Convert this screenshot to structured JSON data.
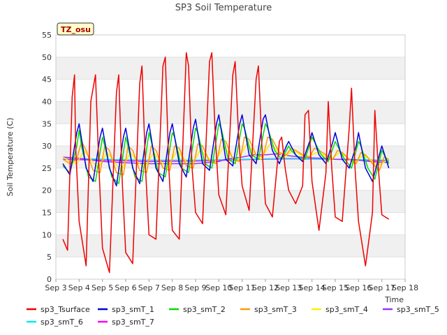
{
  "chart_data": {
    "type": "line",
    "title": "SP3 Soil Temperature",
    "ylabel": "Soil Temperature (C)",
    "xlabel": "Time",
    "badge": "TZ_osu",
    "ylim": [
      0,
      55
    ],
    "xlim": [
      3,
      18
    ],
    "yticks": [
      0,
      5,
      10,
      15,
      20,
      25,
      30,
      35,
      40,
      45,
      50,
      55
    ],
    "xticks": [
      {
        "value": 3,
        "label": "Sep 3"
      },
      {
        "value": 4,
        "label": "Sep 4"
      },
      {
        "value": 5,
        "label": "Sep 5"
      },
      {
        "value": 6,
        "label": "Sep 6"
      },
      {
        "value": 7,
        "label": "Sep 7"
      },
      {
        "value": 8,
        "label": "Sep 8"
      },
      {
        "value": 9,
        "label": "Sep 9"
      },
      {
        "value": 10,
        "label": "Sep 10"
      },
      {
        "value": 11,
        "label": "Sep 11"
      },
      {
        "value": 12,
        "label": "Sep 12"
      },
      {
        "value": 13,
        "label": "Sep 13"
      },
      {
        "value": 14,
        "label": "Sep 14"
      },
      {
        "value": 15,
        "label": "Sep 15"
      },
      {
        "value": 16,
        "label": "Sep 16"
      },
      {
        "value": 17,
        "label": "Sep 17"
      },
      {
        "value": 18,
        "label": "Sep 18"
      }
    ],
    "grid": "horizontal bands",
    "legend": "bottom",
    "series": [
      {
        "name": "sp3_Tsurface",
        "color": "#ee0000",
        "x": [
          3.3,
          3.5,
          3.7,
          3.8,
          3.85,
          4.0,
          4.3,
          4.5,
          4.7,
          4.85,
          5.0,
          5.3,
          5.6,
          5.7,
          5.85,
          6.0,
          6.3,
          6.6,
          6.7,
          6.85,
          7.0,
          7.3,
          7.6,
          7.7,
          7.85,
          8.0,
          8.3,
          8.6,
          8.7,
          8.85,
          9.0,
          9.3,
          9.6,
          9.7,
          9.85,
          10.0,
          10.3,
          10.6,
          10.7,
          10.85,
          11.0,
          11.3,
          11.6,
          11.7,
          11.85,
          12.0,
          12.3,
          12.6,
          12.7,
          12.85,
          13.0,
          13.3,
          13.6,
          13.7,
          13.85,
          14.0,
          14.3,
          14.6,
          14.7,
          14.85,
          15.0,
          15.3,
          15.6,
          15.7,
          15.85,
          16.0,
          16.3,
          16.6,
          16.7,
          16.85,
          17.0,
          17.3
        ],
        "y": [
          9,
          6.5,
          41,
          46,
          30,
          13,
          3,
          40,
          46,
          25,
          7,
          1.5,
          42,
          46,
          22,
          6,
          3.5,
          44,
          48,
          25,
          10,
          9,
          48,
          50,
          25,
          11,
          9,
          51,
          48,
          25,
          15,
          12.5,
          49,
          51,
          32,
          19,
          14.5,
          46,
          49,
          32,
          21,
          15.5,
          45,
          48,
          30,
          17,
          14,
          31,
          32,
          25,
          20,
          17,
          21,
          37,
          38,
          22,
          11,
          24,
          40,
          25,
          14,
          13,
          34,
          43,
          25,
          13,
          3,
          15,
          38,
          25,
          14.5,
          13.5
        ]
      },
      {
        "name": "sp3_smT_1",
        "color": "#0000dd",
        "x": [
          3.3,
          3.6,
          3.9,
          4.0,
          4.3,
          4.6,
          4.9,
          5.0,
          5.3,
          5.6,
          5.9,
          6.0,
          6.3,
          6.6,
          6.9,
          7.0,
          7.3,
          7.6,
          7.9,
          8.0,
          8.3,
          8.6,
          8.9,
          9.0,
          9.3,
          9.6,
          9.9,
          10.0,
          10.3,
          10.6,
          10.9,
          11.0,
          11.3,
          11.6,
          11.9,
          12.0,
          12.3,
          12.6,
          12.9,
          13.0,
          13.3,
          13.6,
          13.9,
          14.0,
          14.3,
          14.6,
          14.9,
          15.0,
          15.3,
          15.6,
          15.9,
          16.0,
          16.3,
          16.6,
          16.9,
          17.0,
          17.3
        ],
        "y": [
          26,
          23.5,
          33,
          35,
          25,
          22,
          32,
          34,
          25,
          21,
          32,
          34,
          25,
          21.5,
          33,
          35,
          25,
          22,
          33,
          35,
          26,
          23,
          34,
          36,
          26,
          24.5,
          35,
          37,
          27,
          25.5,
          35,
          37,
          28,
          26,
          36,
          37,
          29,
          26,
          30,
          31,
          28,
          26.5,
          31,
          33,
          28,
          26,
          31,
          33,
          27,
          25,
          30,
          33,
          25,
          22,
          28,
          30,
          25
        ]
      },
      {
        "name": "sp3_smT_2",
        "color": "#00dd00",
        "x": [
          3.3,
          3.6,
          3.9,
          4.0,
          4.1,
          4.4,
          4.7,
          5.0,
          5.1,
          5.4,
          5.7,
          6.0,
          6.1,
          6.4,
          6.7,
          7.0,
          7.1,
          7.4,
          7.7,
          8.0,
          8.1,
          8.4,
          8.7,
          9.0,
          9.1,
          9.4,
          9.7,
          10.0,
          10.1,
          10.4,
          10.7,
          11.0,
          11.1,
          11.4,
          11.7,
          12.0,
          12.1,
          12.4,
          12.7,
          13.0,
          13.1,
          13.4,
          13.7,
          14.0,
          14.1,
          14.4,
          14.7,
          15.0,
          15.1,
          15.4,
          15.7,
          16.0,
          16.1,
          16.4,
          16.7,
          17.0,
          17.3
        ],
        "y": [
          25.5,
          24,
          30,
          33.5,
          30,
          23,
          22,
          32,
          30,
          23,
          21.5,
          32,
          30,
          23,
          22,
          33,
          31,
          24,
          23,
          33,
          32,
          25,
          24,
          34,
          33,
          26,
          25,
          35,
          34,
          27,
          26,
          35,
          34,
          28,
          27,
          35,
          34,
          29,
          27,
          30,
          29,
          27.5,
          27,
          32,
          31,
          28,
          26.5,
          31,
          30,
          27,
          25,
          31,
          30,
          25,
          22.5,
          29,
          26
        ]
      },
      {
        "name": "sp3_smT_3",
        "color": "#ff9900",
        "x": [
          3.3,
          3.6,
          3.9,
          4.1,
          4.3,
          4.6,
          4.9,
          5.1,
          5.3,
          5.6,
          5.9,
          6.1,
          6.3,
          6.6,
          6.9,
          7.1,
          7.3,
          7.6,
          7.9,
          8.1,
          8.3,
          8.6,
          8.9,
          9.1,
          9.3,
          9.6,
          9.9,
          10.1,
          10.3,
          10.6,
          10.9,
          11.1,
          11.3,
          11.6,
          11.9,
          12.1,
          12.3,
          12.6,
          12.9,
          13.1,
          13.3,
          13.6,
          13.9,
          14.1,
          14.3,
          14.6,
          14.9,
          15.1,
          15.3,
          15.6,
          15.9,
          16.1,
          16.3,
          16.6,
          16.9,
          17.1,
          17.3
        ],
        "y": [
          27,
          26,
          27,
          31,
          29,
          24.5,
          24,
          30,
          29,
          24,
          23.5,
          30,
          29,
          24.5,
          24,
          30,
          29,
          25,
          24.5,
          30,
          29.5,
          25.5,
          25,
          30.5,
          30,
          26.5,
          26,
          31.5,
          31,
          27,
          26.5,
          32,
          31.5,
          28,
          27.5,
          32,
          31.5,
          28.5,
          28,
          29.5,
          29,
          28,
          27.5,
          29.5,
          29,
          28,
          27,
          29,
          28.5,
          27,
          26,
          28.5,
          28,
          26,
          24.5,
          27.5,
          27
        ]
      },
      {
        "name": "sp3_smT_4",
        "color": "#ffee00",
        "x": [
          3.3,
          3.6,
          3.9,
          4.2,
          4.5,
          4.8,
          5.2,
          5.5,
          5.8,
          6.2,
          6.5,
          6.8,
          7.2,
          7.5,
          7.8,
          8.2,
          8.5,
          8.8,
          9.2,
          9.5,
          9.8,
          10.2,
          10.5,
          10.8,
          11.2,
          11.5,
          11.8,
          12.2,
          12.5,
          12.8,
          13.2,
          13.5,
          13.8,
          14.2,
          14.5,
          14.8,
          15.2,
          15.5,
          15.8,
          16.2,
          16.5,
          16.8,
          17.3
        ],
        "y": [
          27.5,
          26.5,
          26,
          29,
          27,
          25,
          28.5,
          26.5,
          24.5,
          28.5,
          26.5,
          25,
          28.5,
          26.5,
          25,
          29,
          27,
          25.5,
          29,
          27.5,
          26,
          30,
          28,
          26.5,
          30.5,
          28.5,
          27,
          30.5,
          29,
          27.5,
          29,
          28,
          27.5,
          28.5,
          28,
          27,
          28.5,
          27.5,
          26,
          28,
          27,
          25.5,
          27
        ]
      },
      {
        "name": "sp3_smT_5",
        "color": "#9933ff",
        "x": [
          3.3,
          4.0,
          5.0,
          6.0,
          7.0,
          8.0,
          9.0,
          10.0,
          10.3,
          11.0,
          11.5,
          12.0,
          12.5,
          13.0,
          13.5,
          14.0,
          14.5,
          15.0,
          15.5,
          16.0,
          16.5,
          17.0,
          17.3
        ],
        "y": [
          27.5,
          27.2,
          26.5,
          26.2,
          26,
          26,
          26,
          26.5,
          27,
          27.5,
          28,
          28,
          28.2,
          27.8,
          27.5,
          27.3,
          27.2,
          27,
          27,
          26.8,
          26.5,
          26.3,
          26.3
        ]
      },
      {
        "name": "sp3_smT_6",
        "color": "#00eeee",
        "x": [
          3.3,
          5.0,
          7.0,
          9.0,
          11.0,
          13.0,
          15.0,
          17.3
        ],
        "y": [
          27.3,
          27.0,
          26.8,
          26.8,
          27.0,
          27.2,
          27.0,
          26.8
        ]
      },
      {
        "name": "sp3_smT_7",
        "color": "#ff00ff",
        "x": [
          3.3,
          5.0,
          7.0,
          9.0,
          11.0,
          13.0,
          15.0,
          17.3
        ],
        "y": [
          27.0,
          26.8,
          26.5,
          26.6,
          26.9,
          27.1,
          27.0,
          26.6
        ]
      }
    ]
  }
}
